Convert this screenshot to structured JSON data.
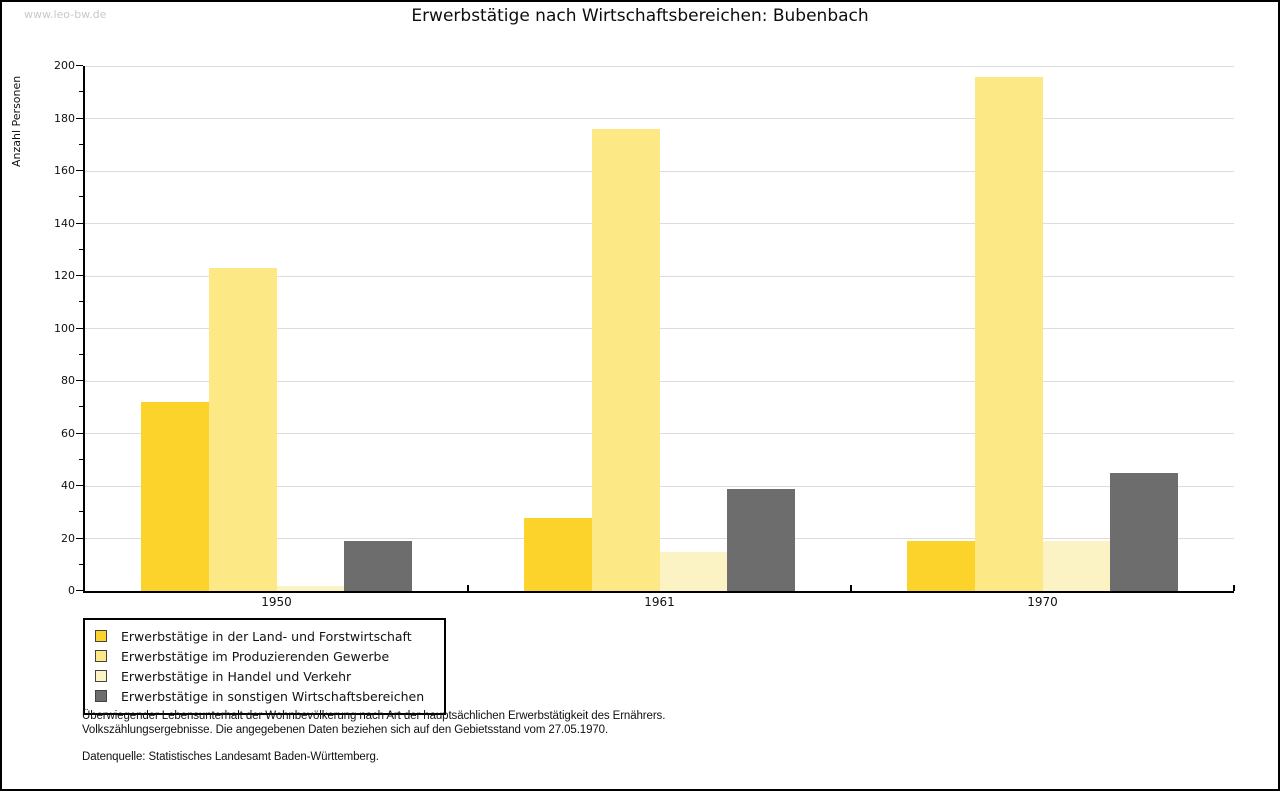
{
  "page": {
    "watermark": "www.leo-bw.de"
  },
  "chart_data": {
    "type": "bar",
    "title": "Erwerbstätige nach Wirtschaftsbereichen: Bubenbach",
    "ylabel": "Anzahl Personen",
    "xlabel": "",
    "categories": [
      "1950",
      "1961",
      "1970"
    ],
    "series": [
      {
        "name": "Erwerbstätige in der Land- und Forstwirtschaft",
        "color": "#fcd32b",
        "values": [
          72,
          28,
          19
        ]
      },
      {
        "name": "Erwerbstätige im Produzierenden Gewerbe",
        "color": "#fce885",
        "values": [
          123,
          176,
          196
        ]
      },
      {
        "name": "Erwerbstätige in Handel und Verkehr",
        "color": "#fbf3c3",
        "values": [
          2,
          15,
          19
        ]
      },
      {
        "name": "Erwerbstätige in sonstigen Wirtschaftsbereichen",
        "color": "#6d6d6d",
        "values": [
          19,
          39,
          45
        ]
      }
    ],
    "ylim": [
      0,
      200
    ],
    "ytick_step": 20,
    "yminor_step": 10,
    "grid": true,
    "legend_position": "bottom-left",
    "axis_color": "#000000",
    "grid_color": "#dcdcdc"
  },
  "footer": {
    "note_line1": "Überwiegender Lebensunterhalt der Wohnbevölkerung nach Art der hauptsächlichen Erwerbstätigkeit des Ernährers.",
    "note_line2": "Volkszählungsergebnisse. Die angegebenen Daten beziehen sich auf den Gebietsstand vom 27.05.1970.",
    "source": "Datenquelle: Statistisches Landesamt Baden-Württemberg."
  }
}
